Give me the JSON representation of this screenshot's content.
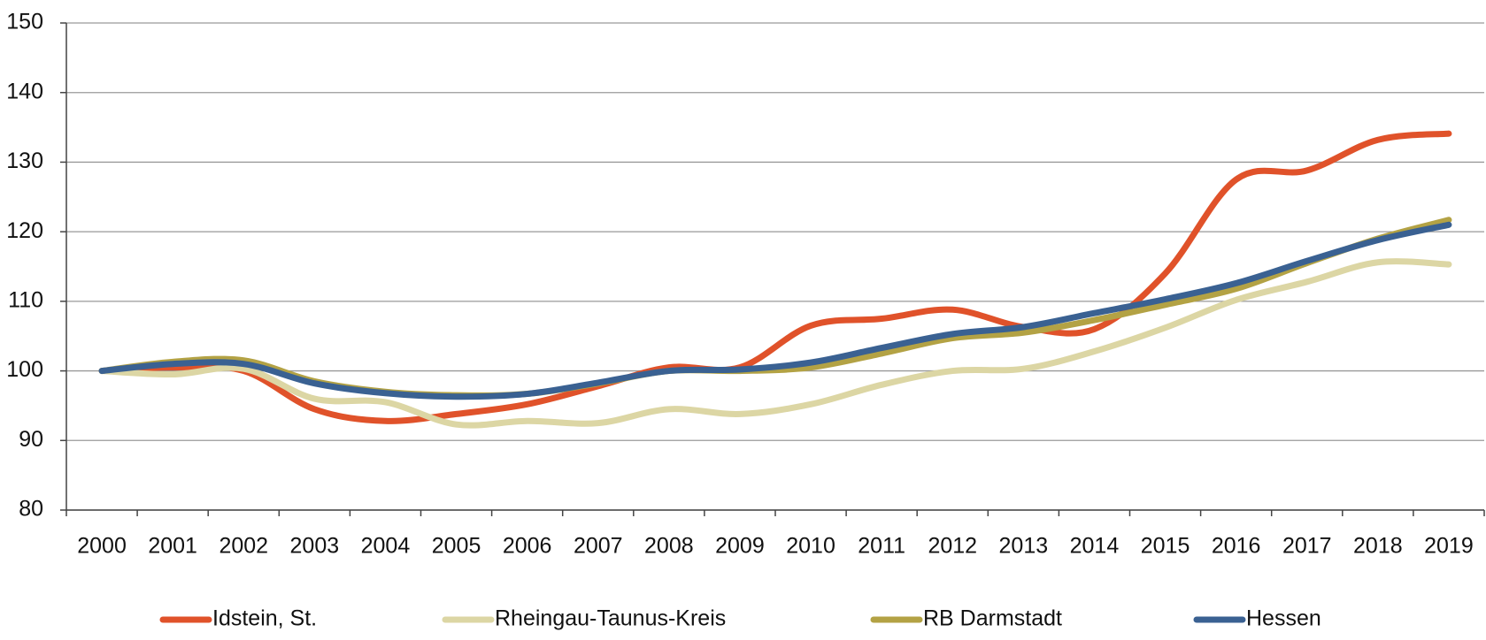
{
  "chart_data": {
    "type": "line",
    "categories": [
      "2000",
      "2001",
      "2002",
      "2003",
      "2004",
      "2005",
      "2006",
      "2007",
      "2008",
      "2009",
      "2010",
      "2011",
      "2012",
      "2013",
      "2014",
      "2015",
      "2016",
      "2017",
      "2018",
      "2019"
    ],
    "series": [
      {
        "name": "Idstein, St.",
        "color": "#e0522a",
        "values": [
          100,
          100.5,
          100,
          94.5,
          92.8,
          93.8,
          95.2,
          97.8,
          100.5,
          100.5,
          106.5,
          107.5,
          108.8,
          106.3,
          106,
          114,
          127.5,
          128.8,
          133.2,
          134.1
        ]
      },
      {
        "name": "Rheingau-Taunus-Kreis",
        "color": "#dcd6a4",
        "values": [
          100,
          99.5,
          100.3,
          96,
          95.5,
          92.3,
          92.8,
          92.5,
          94.5,
          93.8,
          95.2,
          98,
          100,
          100.3,
          102.8,
          106.2,
          110.2,
          112.8,
          115.6,
          115.3
        ]
      },
      {
        "name": "RB Darmstadt",
        "color": "#b3a244",
        "values": [
          100,
          101.3,
          101.5,
          98.5,
          97,
          96.5,
          96.7,
          98.2,
          100,
          100,
          100.5,
          102.5,
          104.7,
          105.5,
          107.3,
          109.5,
          111.8,
          115.5,
          119,
          121.7
        ]
      },
      {
        "name": "Hessen",
        "color": "#3a6192",
        "values": [
          100,
          101,
          101,
          98.2,
          96.8,
          96.3,
          96.7,
          98.3,
          100,
          100.2,
          101.2,
          103.3,
          105.3,
          106.3,
          108.3,
          110.3,
          112.6,
          115.8,
          118.8,
          121
        ]
      }
    ],
    "ylim": [
      80,
      150
    ],
    "yticks": [
      80,
      90,
      100,
      110,
      120,
      130,
      140,
      150
    ],
    "grid": true,
    "legend": "bottom"
  }
}
